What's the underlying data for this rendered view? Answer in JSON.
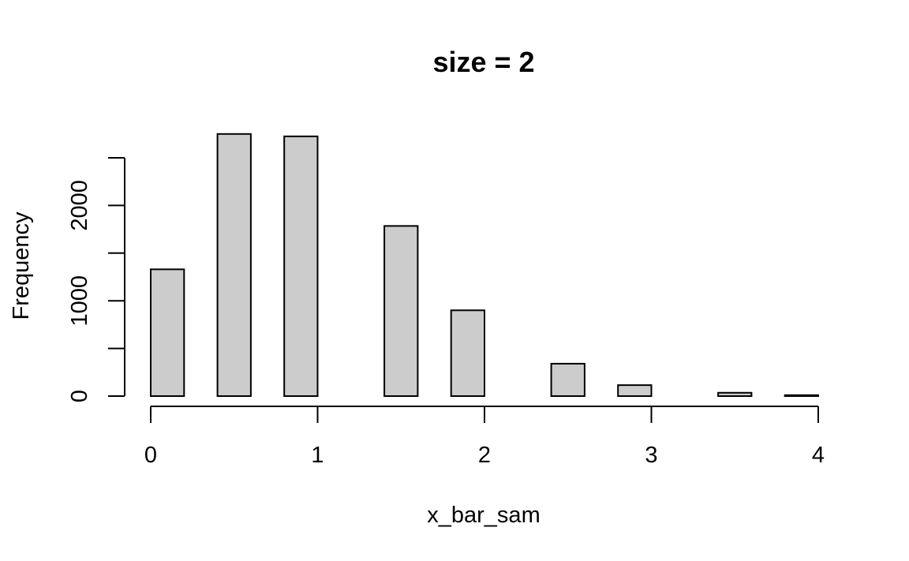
{
  "chart_data": {
    "type": "bar",
    "title": "size = 2",
    "xlabel": "x_bar_sam",
    "ylabel": "Frequency",
    "bins": [
      {
        "x0": 0.0,
        "x1": 0.2,
        "count": 1330
      },
      {
        "x0": 0.4,
        "x1": 0.6,
        "count": 2750
      },
      {
        "x0": 0.8,
        "x1": 1.0,
        "count": 2725
      },
      {
        "x0": 1.4,
        "x1": 1.6,
        "count": 1785
      },
      {
        "x0": 1.8,
        "x1": 2.0,
        "count": 900
      },
      {
        "x0": 2.4,
        "x1": 2.6,
        "count": 340
      },
      {
        "x0": 2.8,
        "x1": 3.0,
        "count": 115
      },
      {
        "x0": 3.4,
        "x1": 3.6,
        "count": 35
      },
      {
        "x0": 3.8,
        "x1": 4.0,
        "count": 10
      }
    ],
    "xlim": [
      0,
      4
    ],
    "ylim": [
      0,
      2500
    ],
    "x_ticks": [
      "0",
      "1",
      "2",
      "3",
      "4"
    ],
    "y_ticks": [
      "0",
      "500",
      "1000",
      "1500",
      "2000",
      "2500"
    ],
    "y_tick_labels": [
      "0",
      "",
      "1000",
      "",
      "2000",
      ""
    ],
    "bar_fill": "#cccccc",
    "bar_stroke": "#000000",
    "grid": false,
    "legend": "none"
  }
}
